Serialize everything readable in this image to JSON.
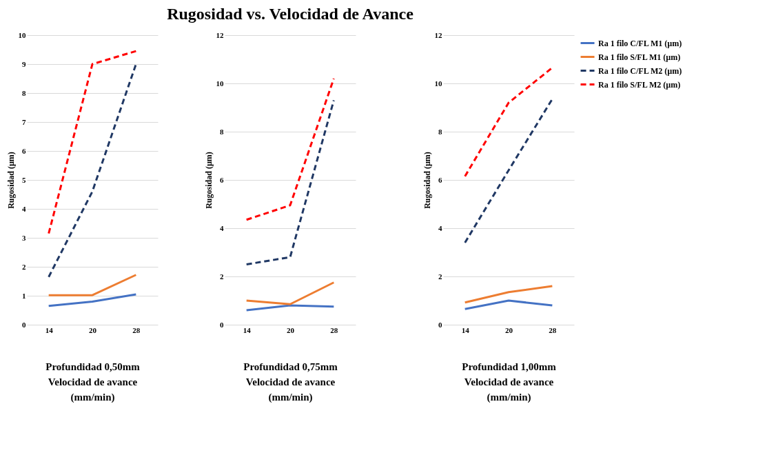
{
  "chart_data": [
    {
      "type": "line",
      "xlabel": "Profundidad 0,50mm\nVelocidad de avance\n(mm/min)",
      "ylabel": "Rugosidad (µm)",
      "categories": [
        "14",
        "20",
        "28"
      ],
      "ylim": [
        0,
        10
      ],
      "yticks": [
        0,
        1,
        2,
        3,
        4,
        5,
        6,
        7,
        8,
        9,
        10
      ],
      "grid": "y",
      "legend": false,
      "series": [
        {
          "color": "#4472c4",
          "line_style": "solid",
          "values": [
            0.65,
            0.8,
            1.05
          ]
        },
        {
          "color": "#ed7d31",
          "line_style": "solid",
          "values": [
            1.02,
            1.02,
            1.72
          ]
        },
        {
          "color": "#203864",
          "line_style": "dashed",
          "values": [
            1.65,
            4.6,
            9.0
          ]
        },
        {
          "color": "#ff0000",
          "line_style": "dashed",
          "values": [
            3.15,
            9.0,
            9.45
          ]
        }
      ]
    },
    {
      "type": "line",
      "title": "Rugosidad vs. Velocidad de Avance",
      "xlabel": "Profundidad 0,75mm\nVelocidad de avance\n(mm/min)",
      "ylabel": "Rugosidad (µm)",
      "categories": [
        "14",
        "20",
        "28"
      ],
      "ylim": [
        0,
        12
      ],
      "yticks": [
        0,
        2,
        4,
        6,
        8,
        10,
        12
      ],
      "grid": "y",
      "legend": false,
      "series": [
        {
          "color": "#4472c4",
          "line_style": "solid",
          "values": [
            0.6,
            0.8,
            0.75
          ]
        },
        {
          "color": "#ed7d31",
          "line_style": "solid",
          "values": [
            1.0,
            0.85,
            1.75
          ]
        },
        {
          "color": "#203864",
          "line_style": "dashed",
          "values": [
            2.5,
            2.8,
            9.3
          ]
        },
        {
          "color": "#ff0000",
          "line_style": "dashed",
          "values": [
            4.35,
            4.95,
            10.2
          ]
        }
      ]
    },
    {
      "type": "line",
      "xlabel": "Profundidad 1,00mm\nVelocidad de avance\n(mm/min)",
      "ylabel": "Rugosidad (µm)",
      "categories": [
        "14",
        "20",
        "28"
      ],
      "ylim": [
        0,
        12
      ],
      "yticks": [
        0,
        2,
        4,
        6,
        8,
        10,
        12
      ],
      "grid": "y",
      "legend": "right",
      "series": [
        {
          "name": "Ra 1 filo C/FL M1 (µm)",
          "color": "#4472c4",
          "line_style": "solid",
          "values": [
            0.65,
            1.0,
            0.8
          ]
        },
        {
          "name": "Ra 1 filo S/FL M1 (µm)",
          "color": "#ed7d31",
          "line_style": "solid",
          "values": [
            0.92,
            1.35,
            1.6
          ]
        },
        {
          "name": "Ra 1 filo C/FL M2 (µm)",
          "color": "#203864",
          "line_style": "dashed",
          "values": [
            3.4,
            6.4,
            9.35
          ]
        },
        {
          "name": "Ra 1 filo S/FL M2 (µm)",
          "color": "#ff0000",
          "line_style": "dashed",
          "values": [
            6.15,
            9.2,
            10.65
          ]
        }
      ]
    }
  ]
}
